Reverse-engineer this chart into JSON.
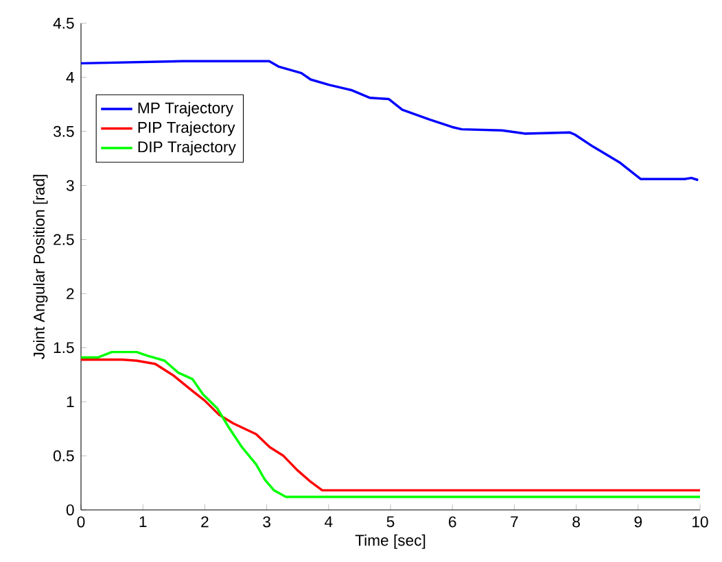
{
  "chart_data": {
    "type": "line",
    "xlabel": "Time [sec]",
    "ylabel": "Joint Angular Position [rad]",
    "xlim": [
      0,
      10
    ],
    "ylim": [
      0,
      4.5
    ],
    "xticks": [
      0,
      1,
      2,
      3,
      4,
      5,
      6,
      7,
      8,
      9,
      10
    ],
    "yticks": [
      0,
      0.5,
      1,
      1.5,
      2,
      2.5,
      3,
      3.5,
      4,
      4.5
    ],
    "grid": false,
    "legend": "top left",
    "marker": "none",
    "line_style": "solid",
    "series": [
      {
        "name": "MP Trajectory",
        "color": "#0000ff",
        "x": [
          0,
          1.64,
          3.04,
          3.19,
          3.56,
          3.71,
          4.01,
          4.38,
          4.67,
          4.97,
          5.19,
          5.63,
          6.0,
          6.15,
          6.8,
          7.17,
          7.9,
          7.98,
          8.27,
          8.71,
          9.04,
          9.75,
          9.86,
          9.97
        ],
        "values": [
          4.13,
          4.15,
          4.15,
          4.1,
          4.04,
          3.98,
          3.93,
          3.88,
          3.81,
          3.8,
          3.7,
          3.61,
          3.54,
          3.52,
          3.51,
          3.48,
          3.49,
          3.47,
          3.36,
          3.21,
          3.06,
          3.06,
          3.07,
          3.05
        ]
      },
      {
        "name": "PIP Trajectory",
        "color": "#ff0000",
        "x": [
          0,
          0.67,
          0.9,
          1.2,
          1.5,
          1.8,
          2.0,
          2.23,
          2.46,
          2.83,
          3.05,
          3.27,
          3.49,
          3.71,
          3.9,
          10
        ],
        "values": [
          1.39,
          1.39,
          1.38,
          1.35,
          1.24,
          1.1,
          1.01,
          0.88,
          0.8,
          0.7,
          0.58,
          0.5,
          0.37,
          0.26,
          0.18,
          0.18
        ]
      },
      {
        "name": "DIP Trajectory",
        "color": "#00ff00",
        "x": [
          0,
          0.27,
          0.5,
          0.9,
          1.05,
          1.35,
          1.57,
          1.8,
          1.97,
          2.2,
          2.38,
          2.6,
          2.83,
          2.97,
          3.12,
          3.31,
          10
        ],
        "values": [
          1.41,
          1.41,
          1.46,
          1.46,
          1.43,
          1.38,
          1.27,
          1.21,
          1.07,
          0.94,
          0.77,
          0.58,
          0.42,
          0.28,
          0.18,
          0.12,
          0.12
        ]
      }
    ]
  }
}
